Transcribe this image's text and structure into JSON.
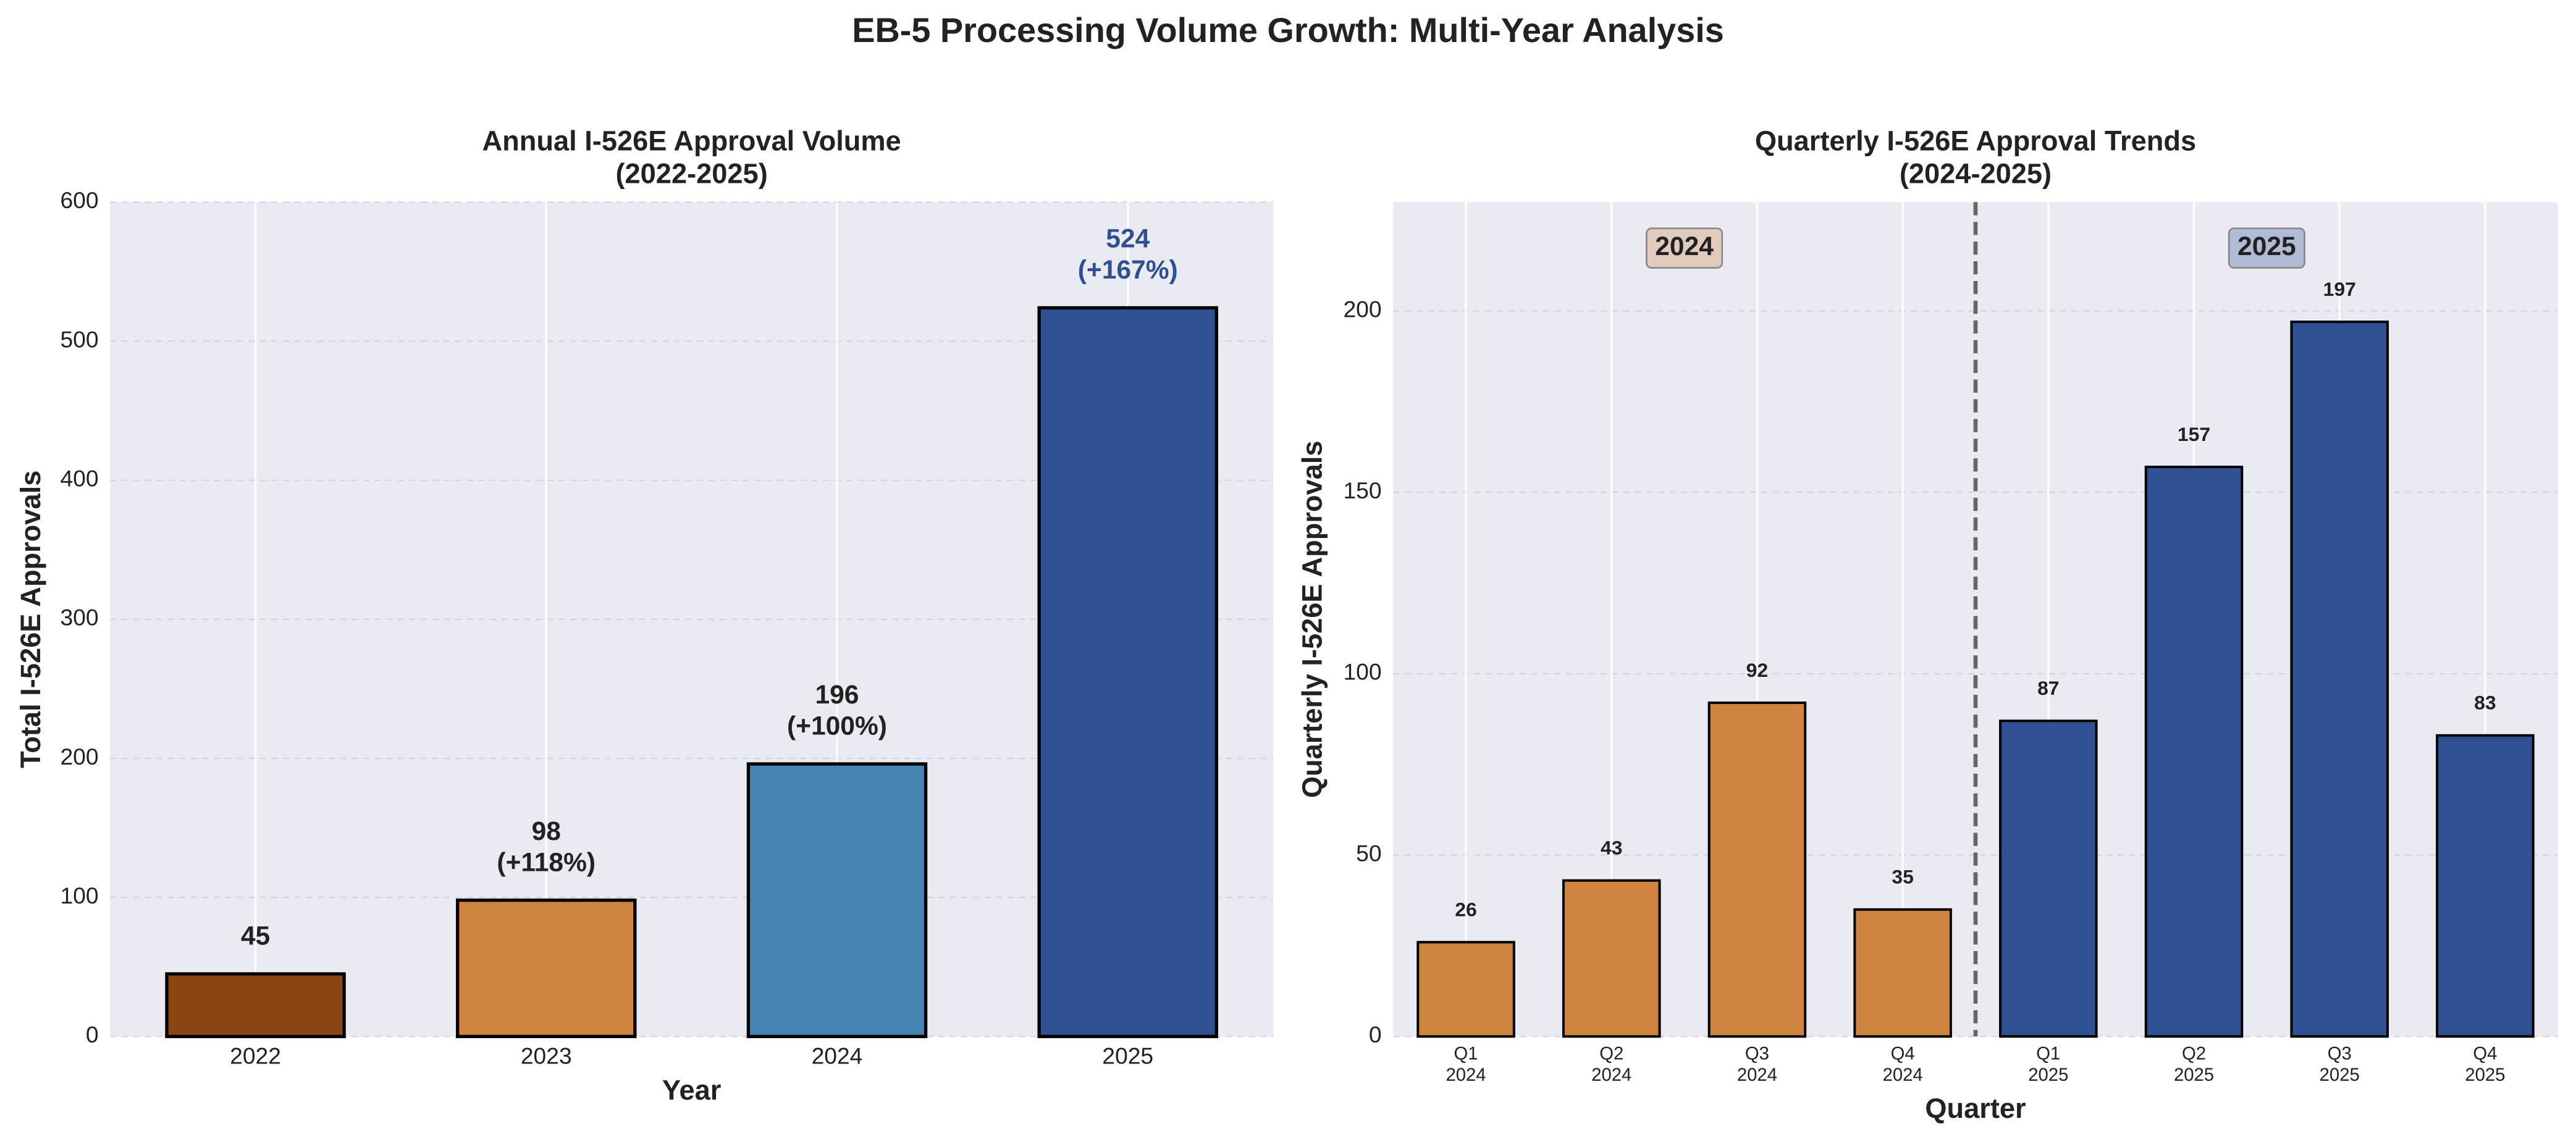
{
  "title": "EB-5 Processing Volume Growth: Multi-Year Analysis",
  "chart_data": [
    {
      "type": "bar",
      "title": [
        "Annual I-526E Approval Volume",
        "(2022-2025)"
      ],
      "xlabel": "Year",
      "ylabel": "Total I-526E Approvals",
      "categories": [
        "2022",
        "2023",
        "2024",
        "2025"
      ],
      "values": [
        45,
        98,
        196,
        524
      ],
      "colors": [
        "#8B4513",
        "#CD853F",
        "#4682B4",
        "#2F5091"
      ],
      "growth_labels": [
        null,
        "(+118%)",
        "(+100%)",
        "(+167%)"
      ],
      "label_colors": [
        "#222222",
        "#222222",
        "#222222",
        "#2F4F8F"
      ],
      "ylim": [
        0,
        600
      ],
      "yticks": [
        0,
        100,
        200,
        300,
        400,
        500,
        600
      ],
      "grid": true
    },
    {
      "type": "grouped-bar",
      "title": [
        "Quarterly I-526E Approval Trends",
        "(2024-2025)"
      ],
      "xlabel": "Quarter",
      "ylabel": "Quarterly I-526E Approvals",
      "categories": [
        [
          "Q1",
          "2024"
        ],
        [
          "Q2",
          "2024"
        ],
        [
          "Q3",
          "2024"
        ],
        [
          "Q4",
          "2024"
        ],
        [
          "Q1",
          "2025"
        ],
        [
          "Q2",
          "2025"
        ],
        [
          "Q3",
          "2025"
        ],
        [
          "Q4",
          "2025"
        ]
      ],
      "series": [
        {
          "name": "2024",
          "color": "#CD853F",
          "values": [
            26,
            43,
            92,
            35,
            null,
            null,
            null,
            null
          ]
        },
        {
          "name": "2025",
          "color": "#2F5091",
          "values": [
            null,
            null,
            null,
            null,
            87,
            157,
            197,
            83
          ]
        }
      ],
      "ylim": [
        0,
        230
      ],
      "yticks": [
        0,
        50,
        100,
        150,
        200
      ],
      "grid": true
    }
  ]
}
